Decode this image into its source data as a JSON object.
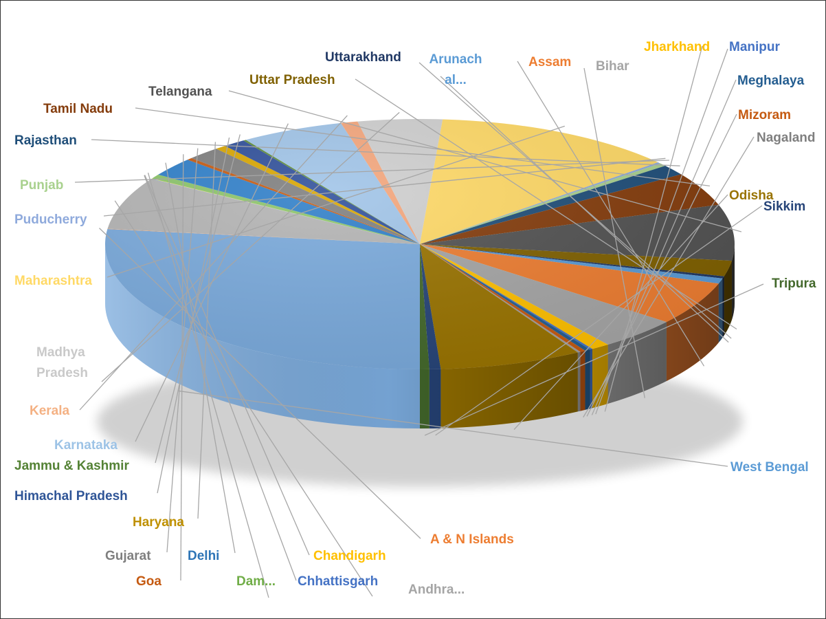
{
  "chart_data": {
    "type": "pie",
    "style": "3d",
    "title": "",
    "legend": "none",
    "labels_position": "outside-with-leader-lines",
    "slices": [
      {
        "label": "West Bengal",
        "value": 28.0,
        "color": "#7aaadc"
      },
      {
        "label": "A & N Islands",
        "value": 0.05,
        "color": "#f4a872"
      },
      {
        "label": "Andhra...",
        "value": 7.0,
        "color": "#b4b4b4"
      },
      {
        "label": "Chhattisgarh",
        "value": 0.05,
        "color": "#7da7d9"
      },
      {
        "label": "Chandigarh",
        "value": 0.05,
        "color": "#ffd966"
      },
      {
        "label": "Dam...",
        "value": 0.6,
        "color": "#8cc56a"
      },
      {
        "label": "Delhi",
        "value": 2.5,
        "color": "#2f7fc9"
      },
      {
        "label": "Goa",
        "value": 0.3,
        "color": "#c55a11"
      },
      {
        "label": "Gujarat",
        "value": 1.8,
        "color": "#7f7f7f"
      },
      {
        "label": "Haryana",
        "value": 0.6,
        "color": "#d9a600"
      },
      {
        "label": "Himachal Pradesh",
        "value": 1.2,
        "color": "#2f4f9a"
      },
      {
        "label": "Jammu & Kashmir",
        "value": 0.15,
        "color": "#5e8c3a"
      },
      {
        "label": "Karnataka",
        "value": 5.5,
        "color": "#a0c4e8"
      },
      {
        "label": "Kerala",
        "value": 0.9,
        "color": "#f4a67c"
      },
      {
        "label": "Madhya Pradesh",
        "value": 4.5,
        "color": "#cfcfcf"
      },
      {
        "label": "Maharashtra",
        "value": 13.0,
        "color": "#ffd966"
      },
      {
        "label": "Puducherry",
        "value": 0.2,
        "color": "#8eaadb"
      },
      {
        "label": "Punjab",
        "value": 0.4,
        "color": "#a9d18e"
      },
      {
        "label": "Rajasthan",
        "value": 1.4,
        "color": "#1f4e79"
      },
      {
        "label": "Tamil Nadu",
        "value": 4.5,
        "color": "#843c0c"
      },
      {
        "label": "Telangana",
        "value": 7.5,
        "color": "#525252"
      },
      {
        "label": "Uttar Pradesh",
        "value": 2.1,
        "color": "#7f6000"
      },
      {
        "label": "Uttarakhand",
        "value": 0.3,
        "color": "#203864"
      },
      {
        "label": "Arunach al...",
        "value": 0.7,
        "color": "#5b9bd5"
      },
      {
        "label": "Assam",
        "value": 5.8,
        "color": "#ed7d31"
      },
      {
        "label": "Bihar",
        "value": 4.3,
        "color": "#a5a5a5"
      },
      {
        "label": "Jharkhand",
        "value": 1.0,
        "color": "#ffc000"
      },
      {
        "label": "Manipur",
        "value": 0.15,
        "color": "#4472c4"
      },
      {
        "label": "Meghalaya",
        "value": 0.3,
        "color": "#255e91"
      },
      {
        "label": "Mizoram",
        "value": 0.3,
        "color": "#c55a11"
      },
      {
        "label": "Nagaland",
        "value": 0.15,
        "color": "#9e9e9e"
      },
      {
        "label": "Odisha",
        "value": 7.6,
        "color": "#997300"
      },
      {
        "label": "Sikkim",
        "value": 0.6,
        "color": "#264478"
      },
      {
        "label": "Tripura",
        "value": 0.5,
        "color": "#43682b"
      }
    ],
    "label_colors": {
      "West Bengal": "#5b9bd5",
      "A & N Islands": "#ed7d31",
      "Andhra...": "#a5a5a5",
      "Chhattisgarh": "#4472c4",
      "Chandigarh": "#ffc000",
      "Dam...": "#70ad47",
      "Delhi": "#2e75b6",
      "Goa": "#c55a11",
      "Gujarat": "#7f7f7f",
      "Haryana": "#bf9000",
      "Himachal Pradesh": "#2f5597",
      "Jammu & Kashmir": "#548235",
      "Karnataka": "#9dc3e6",
      "Kerala": "#f4b183",
      "Madhya Pradesh": "#c9c9c9",
      "Maharashtra": "#ffd966",
      "Puducherry": "#8faadc",
      "Punjab": "#a9d18e",
      "Rajasthan": "#1f4e79",
      "Tamil Nadu": "#843c0c",
      "Telangana": "#525252",
      "Uttar Pradesh": "#7f6000",
      "Uttarakhand": "#203864",
      "Arunach al...": "#5b9bd5",
      "Assam": "#ed7d31",
      "Bihar": "#a5a5a5",
      "Jharkhand": "#ffc000",
      "Manipur": "#4472c4",
      "Meghalaya": "#255e91",
      "Mizoram": "#c55a11",
      "Nagaland": "#7f7f7f",
      "Odisha": "#997300",
      "Sikkim": "#264478",
      "Tripura": "#43682b"
    }
  }
}
